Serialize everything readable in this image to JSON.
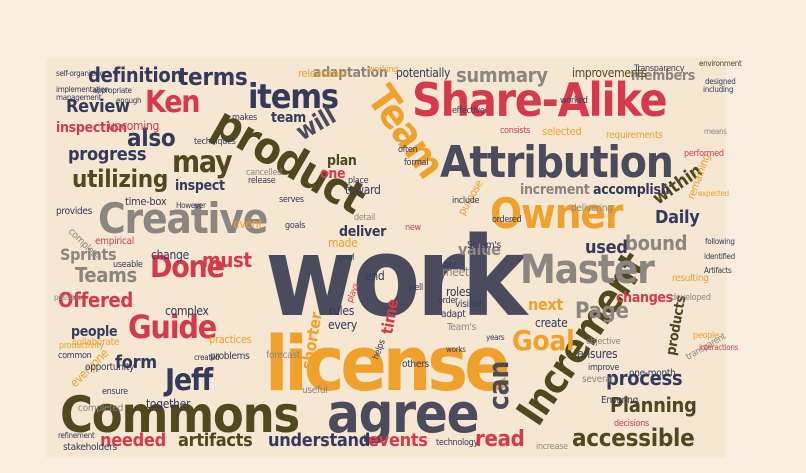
{
  "colors": {
    "canvas_background": "#f9ede0",
    "cloud_background": "#f6e7d2",
    "slate": "#4a4c5e",
    "gray": "#8a8681",
    "amber": "#f0a12c",
    "red": "#d63a4a",
    "olive": "#4f4a1e",
    "navy": "#333a5c"
  },
  "words": [
    {
      "text": "work",
      "color": "slate"
    },
    {
      "text": "license",
      "color": "amber"
    },
    {
      "text": "Commons",
      "color": "olive"
    },
    {
      "text": "agree",
      "color": "slate"
    },
    {
      "text": "Attribution",
      "color": "slate"
    },
    {
      "text": "Share-Alike",
      "color": "red"
    },
    {
      "text": "product",
      "color": "olive"
    },
    {
      "text": "Creative",
      "color": "gray"
    },
    {
      "text": "Increment",
      "color": "olive"
    },
    {
      "text": "Master",
      "color": "gray"
    },
    {
      "text": "Owner",
      "color": "amber"
    },
    {
      "text": "Team",
      "color": "amber"
    },
    {
      "text": "items",
      "color": "navy"
    },
    {
      "text": "Guide",
      "color": "red"
    },
    {
      "text": "Done",
      "color": "red"
    },
    {
      "text": "may",
      "color": "olive"
    },
    {
      "text": "Ken",
      "color": "red"
    },
    {
      "text": "Jeff",
      "color": "navy"
    },
    {
      "text": "Goal",
      "color": "amber"
    },
    {
      "text": "terms",
      "color": "navy"
    },
    {
      "text": "can",
      "color": "slate"
    },
    {
      "text": "utilizing",
      "color": "olive"
    },
    {
      "text": "also",
      "color": "navy"
    },
    {
      "text": "will",
      "color": "slate"
    },
    {
      "text": "summary",
      "color": "gray"
    },
    {
      "text": "definition",
      "color": "navy"
    },
    {
      "text": "Review",
      "color": "navy"
    },
    {
      "text": "progress",
      "color": "navy"
    },
    {
      "text": "Daily",
      "color": "navy"
    },
    {
      "text": "within",
      "color": "olive"
    },
    {
      "text": "bound",
      "color": "gray"
    },
    {
      "text": "used",
      "color": "navy"
    },
    {
      "text": "Page",
      "color": "gray"
    },
    {
      "text": "must",
      "color": "red"
    },
    {
      "text": "Offered",
      "color": "red"
    },
    {
      "text": "Teams",
      "color": "gray"
    },
    {
      "text": "Sprints",
      "color": "gray"
    },
    {
      "text": "form",
      "color": "navy"
    },
    {
      "text": "process",
      "color": "navy"
    },
    {
      "text": "Planning",
      "color": "olive"
    },
    {
      "text": "accessible",
      "color": "olive"
    },
    {
      "text": "read",
      "color": "red"
    },
    {
      "text": "events",
      "color": "red"
    },
    {
      "text": "understand",
      "color": "navy"
    },
    {
      "text": "artifacts",
      "color": "olive"
    },
    {
      "text": "needed",
      "color": "red"
    },
    {
      "text": "next",
      "color": "amber"
    },
    {
      "text": "value",
      "color": "gray"
    },
    {
      "text": "members",
      "color": "gray"
    },
    {
      "text": "inspection",
      "color": "red"
    },
    {
      "text": "inspect",
      "color": "navy"
    },
    {
      "text": "accomplish",
      "color": "navy"
    },
    {
      "text": "people",
      "color": "navy"
    },
    {
      "text": "one",
      "color": "red"
    },
    {
      "text": "team",
      "color": "navy"
    },
    {
      "text": "plan",
      "color": "olive"
    },
    {
      "text": "adaptation",
      "color": "gray"
    },
    {
      "text": "potentially",
      "color": "navy"
    },
    {
      "text": "improvements",
      "color": "olive"
    },
    {
      "text": "increment",
      "color": "gray"
    },
    {
      "text": "deliver",
      "color": "navy"
    },
    {
      "text": "changes",
      "color": "red"
    },
    {
      "text": "products",
      "color": "olive"
    },
    {
      "text": "ensures",
      "color": "navy"
    },
    {
      "text": "create",
      "color": "navy"
    },
    {
      "text": "rules",
      "color": "navy"
    },
    {
      "text": "every",
      "color": "navy"
    },
    {
      "text": "complex",
      "color": "navy"
    },
    {
      "text": "change",
      "color": "navy"
    },
    {
      "text": "made",
      "color": "amber"
    },
    {
      "text": "shorter",
      "color": "amber"
    },
    {
      "text": "end",
      "color": "navy"
    },
    {
      "text": "meet",
      "color": "gray"
    },
    {
      "text": "roles",
      "color": "navy"
    },
    {
      "text": "upcoming",
      "color": "red"
    },
    {
      "text": "releasable",
      "color": "amber"
    },
    {
      "text": "time-box",
      "color": "navy"
    },
    {
      "text": "toward",
      "color": "navy"
    },
    {
      "text": "event",
      "color": "amber"
    },
    {
      "text": "selected",
      "color": "amber"
    },
    {
      "text": "everyone",
      "color": "amber"
    },
    {
      "text": "together",
      "color": "navy"
    },
    {
      "text": "completed",
      "color": "gray"
    },
    {
      "text": "stakeholders",
      "color": "navy"
    },
    {
      "text": "collaborate",
      "color": "amber"
    },
    {
      "text": "one-month",
      "color": "navy"
    },
    {
      "text": "opportunity",
      "color": "navy"
    },
    {
      "text": "practices",
      "color": "amber"
    },
    {
      "text": "problems",
      "color": "navy"
    },
    {
      "text": "forecast",
      "color": "gray"
    },
    {
      "text": "others",
      "color": "navy"
    },
    {
      "text": "several",
      "color": "gray"
    },
    {
      "text": "Ensuring",
      "color": "navy"
    },
    {
      "text": "technology",
      "color": "navy"
    },
    {
      "text": "increase",
      "color": "gray"
    },
    {
      "text": "visible",
      "color": "navy"
    },
    {
      "text": "adapt",
      "color": "navy"
    },
    {
      "text": "Team's",
      "color": "gray"
    },
    {
      "text": "Scrum's",
      "color": "navy"
    },
    {
      "text": "delivering",
      "color": "gray"
    },
    {
      "text": "purpose",
      "color": "amber"
    },
    {
      "text": "requirements",
      "color": "amber"
    },
    {
      "text": "remaining",
      "color": "amber"
    },
    {
      "text": "performed",
      "color": "red"
    },
    {
      "text": "empirical",
      "color": "red"
    },
    {
      "text": "complete",
      "color": "gray"
    },
    {
      "text": "provides",
      "color": "navy"
    },
    {
      "text": "useable",
      "color": "navy"
    },
    {
      "text": "release",
      "color": "navy"
    },
    {
      "text": "cancelled",
      "color": "gray"
    },
    {
      "text": "techniques",
      "color": "navy"
    },
    {
      "text": "goals",
      "color": "navy"
    },
    {
      "text": "makes",
      "color": "navy"
    },
    {
      "text": "Transparency",
      "color": "navy"
    },
    {
      "text": "self-organizing",
      "color": "navy"
    },
    {
      "text": "implementation",
      "color": "navy"
    },
    {
      "text": "management",
      "color": "navy"
    },
    {
      "text": "appropriate",
      "color": "navy"
    },
    {
      "text": "enough",
      "color": "navy"
    },
    {
      "text": "However",
      "color": "navy"
    },
    {
      "text": "productivity",
      "color": "amber"
    },
    {
      "text": "common",
      "color": "navy"
    },
    {
      "text": "refinement",
      "color": "navy"
    },
    {
      "text": "useful",
      "color": "gray"
    },
    {
      "text": "decisions",
      "color": "red"
    },
    {
      "text": "resulting",
      "color": "amber"
    },
    {
      "text": "developed",
      "color": "gray"
    },
    {
      "text": "following",
      "color": "navy"
    },
    {
      "text": "identified",
      "color": "navy"
    },
    {
      "text": "transparent",
      "color": "gray"
    },
    {
      "text": "objective",
      "color": "gray"
    },
    {
      "text": "improve",
      "color": "navy"
    },
    {
      "text": "working",
      "color": "amber"
    },
    {
      "text": "worked",
      "color": "navy"
    },
    {
      "text": "effective",
      "color": "navy"
    },
    {
      "text": "consists",
      "color": "red"
    },
    {
      "text": "include",
      "color": "navy"
    },
    {
      "text": "ordered",
      "color": "navy"
    },
    {
      "text": "formal",
      "color": "navy"
    },
    {
      "text": "serves",
      "color": "navy"
    },
    {
      "text": "created",
      "color": "navy"
    },
    {
      "text": "possible",
      "color": "gray"
    },
    {
      "text": "ensure",
      "color": "navy"
    },
    {
      "text": "place",
      "color": "navy"
    },
    {
      "text": "often",
      "color": "navy"
    },
    {
      "text": "time",
      "color": "red"
    },
    {
      "text": "detail",
      "color": "gray"
    },
    {
      "text": "helps",
      "color": "navy"
    },
    {
      "text": "new",
      "color": "red"
    },
    {
      "text": "goal",
      "color": "navy"
    },
    {
      "text": "day",
      "color": "navy"
    },
    {
      "text": "well",
      "color": "navy"
    },
    {
      "text": "order",
      "color": "navy"
    },
    {
      "text": "plays",
      "color": "red"
    },
    {
      "text": "environment",
      "color": "olive"
    },
    {
      "text": "including",
      "color": "navy"
    },
    {
      "text": "designed",
      "color": "navy"
    },
    {
      "text": "means",
      "color": "gray"
    },
    {
      "text": "expected",
      "color": "amber"
    },
    {
      "text": "interactions",
      "color": "red"
    },
    {
      "text": "Artifacts",
      "color": "navy"
    },
    {
      "text": "people",
      "color": "amber"
    },
    {
      "text": "years",
      "color": "navy"
    },
    {
      "text": "works",
      "color": "navy"
    }
  ]
}
